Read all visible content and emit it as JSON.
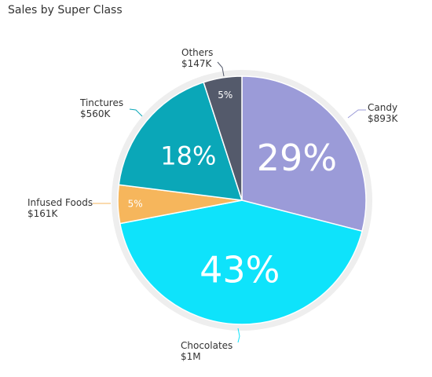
{
  "title": "Sales by Super Class",
  "chart_data": {
    "type": "pie",
    "title": "Sales by Super Class",
    "legend": "callouts",
    "slices": [
      {
        "label": "Candy",
        "value_label": "$893K",
        "value": 893,
        "percent": 29,
        "percent_label": "29%",
        "color": "#9b9bd8"
      },
      {
        "label": "Chocolates",
        "value_label": "$1M",
        "value": 1300,
        "percent": 43,
        "percent_label": "43%",
        "color": "#0ee3fb"
      },
      {
        "label": "Infused Foods",
        "value_label": "$161K",
        "value": 161,
        "percent": 5,
        "percent_label": "5%",
        "color": "#f6b65c"
      },
      {
        "label": "Tinctures",
        "value_label": "$560K",
        "value": 560,
        "percent": 18,
        "percent_label": "18%",
        "color": "#0aa7b8"
      },
      {
        "label": "Others",
        "value_label": "$147K",
        "value": 147,
        "percent": 5,
        "percent_label": "5%",
        "color": "#545a6b"
      }
    ],
    "ring_color": "#eeeeee"
  }
}
